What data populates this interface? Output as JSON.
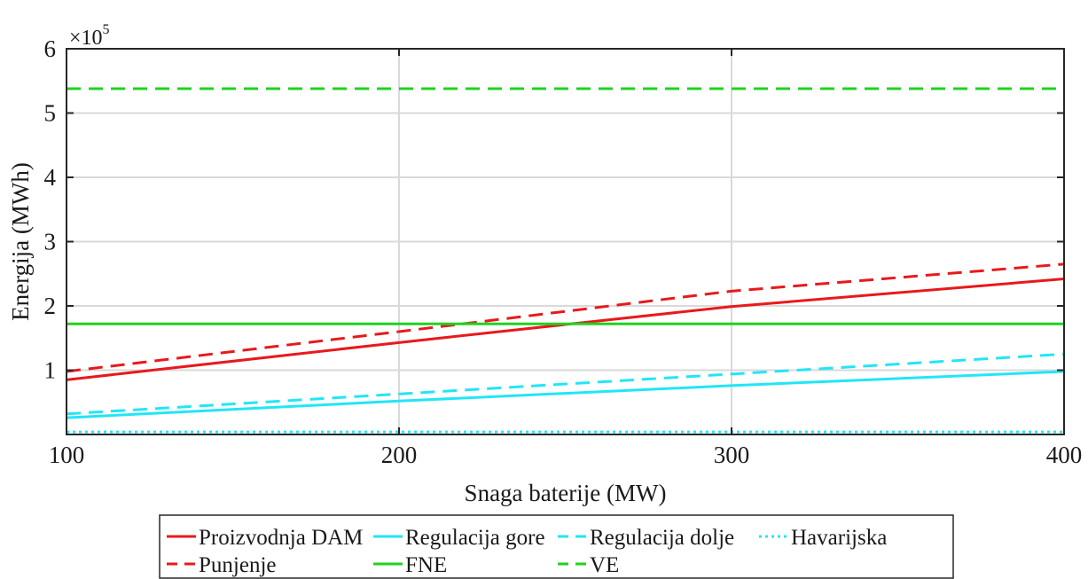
{
  "chart_data": {
    "type": "line",
    "xlabel": "Snaga baterije (MW)",
    "ylabel": "Energija (MWh)",
    "exponent_label": "×10",
    "exponent_power": "5",
    "xlim": [
      100,
      400
    ],
    "ylim": [
      0,
      6
    ],
    "x_ticks": [
      100,
      200,
      300,
      400
    ],
    "x_tick_labels": [
      "100",
      "200",
      "300",
      "400"
    ],
    "y_ticks": [
      1,
      2,
      3,
      4,
      5,
      6
    ],
    "y_tick_labels": [
      "1",
      "2",
      "3",
      "4",
      "5",
      "6"
    ],
    "grid": true,
    "legend_position": "bottom",
    "series": [
      {
        "name": "Proizvodnja DAM",
        "color": "#e8191c",
        "dash": "solid",
        "x": [
          100,
          200,
          300,
          400
        ],
        "y": [
          0.85,
          1.43,
          1.99,
          2.42
        ]
      },
      {
        "name": "Regulacija gore",
        "color": "#21e6f6",
        "dash": "solid",
        "x": [
          100,
          200,
          300,
          400
        ],
        "y": [
          0.26,
          0.52,
          0.76,
          0.98
        ]
      },
      {
        "name": "Regulacija dolje",
        "color": "#21e6f6",
        "dash": "dashed",
        "x": [
          100,
          200,
          300,
          400
        ],
        "y": [
          0.32,
          0.63,
          0.94,
          1.25
        ]
      },
      {
        "name": "Havarijska",
        "color": "#21e6f6",
        "dash": "dotted",
        "x": [
          100,
          400
        ],
        "y": [
          0.04,
          0.04
        ]
      },
      {
        "name": "Punjenje",
        "color": "#e8191c",
        "dash": "dashed",
        "x": [
          100,
          200,
          300,
          400
        ],
        "y": [
          0.98,
          1.6,
          2.23,
          2.65
        ]
      },
      {
        "name": "FNE",
        "color": "#1fd21f",
        "dash": "solid",
        "x": [
          100,
          400
        ],
        "y": [
          1.72,
          1.72
        ]
      },
      {
        "name": "VE",
        "color": "#1fd21f",
        "dash": "dashed",
        "x": [
          100,
          400
        ],
        "y": [
          5.38,
          5.38
        ]
      }
    ]
  }
}
